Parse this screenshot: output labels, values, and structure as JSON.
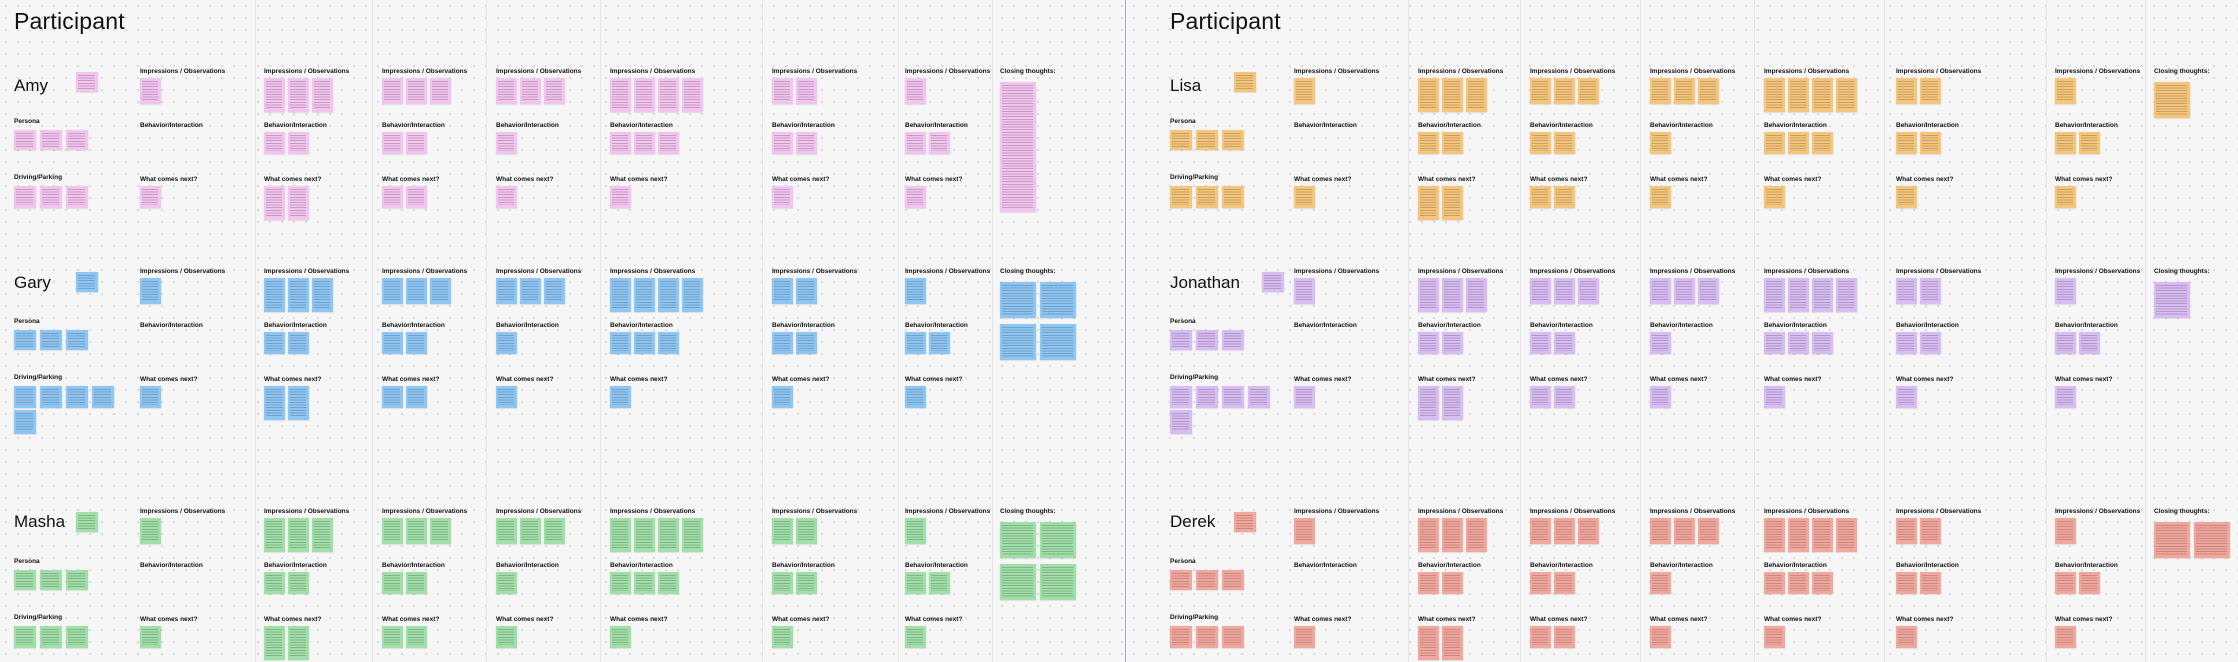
{
  "colors": {
    "pink": "#f2c4ef",
    "blue": "#8cc6f4",
    "green": "#9fdfa8",
    "orange": "#f5c57a",
    "purple": "#d8bdf4",
    "salmon": "#f2a79c",
    "separator": "#a8a3f2"
  },
  "labels": {
    "participant": "Participant",
    "impressions": "Impressions / Observations",
    "behavior": "Behavior/Interaction",
    "next": "What comes next?",
    "closing": "Closing thoughts:",
    "persona": "Persona",
    "personas": "Persona",
    "driving": "Driving/Parking"
  },
  "boards": [
    {
      "title": "Participant",
      "participants": [
        {
          "name": "Amy",
          "color": "pink",
          "persona_label": "Persona"
        },
        {
          "name": "Gary",
          "color": "blue",
          "persona_label": "Persona"
        },
        {
          "name": "Masha",
          "color": "green",
          "persona_label": "Persona"
        }
      ]
    },
    {
      "title": "Participant",
      "participants": [
        {
          "name": "Lisa",
          "color": "orange",
          "persona_label": "Persona"
        },
        {
          "name": "Jonathan",
          "color": "purple",
          "persona_label": "Persona"
        },
        {
          "name": "Derek",
          "color": "salmon",
          "persona_label": "Persona"
        }
      ]
    }
  ]
}
